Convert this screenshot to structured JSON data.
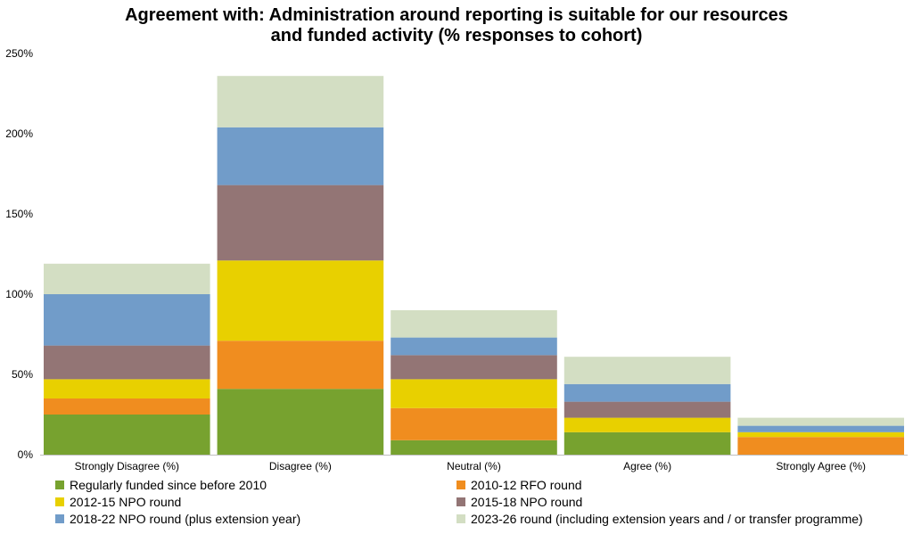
{
  "chart_data": {
    "type": "bar",
    "stacked": true,
    "title_lines": [
      "Agreement with: Administration around reporting is suitable for our resources",
      "and funded activity (% responses to cohort)"
    ],
    "categories": [
      "Strongly Disagree (%)",
      "Disagree (%)",
      "Neutral (%)",
      "Agree (%)",
      "Strongly Agree (%)"
    ],
    "ylim": [
      0,
      250
    ],
    "yticks": [
      0,
      50,
      100,
      150,
      200,
      250
    ],
    "ytick_labels": [
      "0%",
      "50%",
      "100%",
      "150%",
      "200%",
      "250%"
    ],
    "grid": false,
    "legend_position": "bottom",
    "series": [
      {
        "name": "Regularly funded since before 2010",
        "color": "#77A22F",
        "values": [
          25,
          41,
          9,
          14,
          0
        ]
      },
      {
        "name": "2010-12 RFO round",
        "color": "#F08D1F",
        "values": [
          10,
          30,
          20,
          0,
          11
        ]
      },
      {
        "name": "2012-15 NPO round",
        "color": "#E8D000",
        "values": [
          12,
          50,
          18,
          9,
          3
        ]
      },
      {
        "name": "2015-18 NPO round",
        "color": "#937575",
        "values": [
          21,
          47,
          15,
          10,
          0
        ]
      },
      {
        "name": "2018-22 NPO round (plus extension year)",
        "color": "#719CC9",
        "values": [
          32,
          36,
          11,
          11,
          4
        ]
      },
      {
        "name": "2023-26 round (including extension years and / or transfer programme)",
        "color": "#D3DEC3",
        "values": [
          19,
          32,
          17,
          17,
          5
        ]
      }
    ]
  }
}
